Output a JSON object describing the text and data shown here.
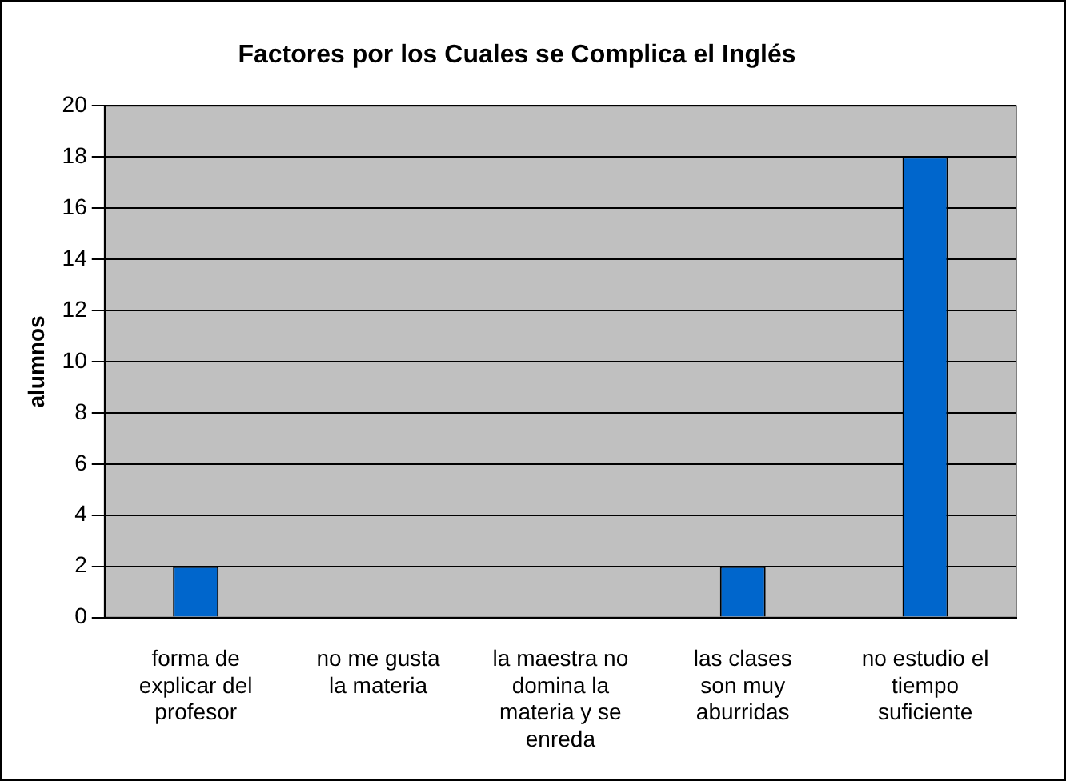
{
  "chart_data": {
    "type": "bar",
    "title": "Factores por los Cuales se Complica el Inglés",
    "ylabel": "alumnos",
    "categories": [
      "forma de explicar del profesor",
      "no me gusta la materia",
      "la maestra no domina la materia y se enreda",
      "las clases son muy aburridas",
      "no estudio el tiempo suficiente"
    ],
    "values": [
      2,
      0,
      0,
      2,
      18
    ],
    "color": "#0066cc",
    "ylim": [
      0,
      20
    ],
    "yticks": [
      0,
      2,
      4,
      6,
      8,
      10,
      12,
      14,
      16,
      18,
      20
    ],
    "grid": "y",
    "legend": false
  }
}
